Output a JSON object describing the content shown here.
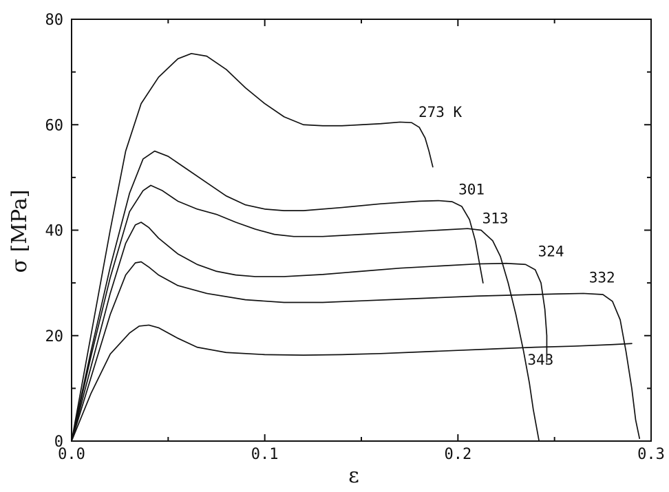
{
  "chart_data": {
    "type": "line",
    "xlabel": "ε",
    "ylabel": "σ [MPa]",
    "xlim": [
      0,
      0.3
    ],
    "ylim": [
      0,
      80
    ],
    "xticks": [
      "0.0",
      "0.1",
      "0.2",
      "0.3"
    ],
    "yticks": [
      "0",
      "20",
      "40",
      "60",
      "80"
    ],
    "grid": false,
    "series": [
      {
        "name": "273 K",
        "points": [
          [
            0.0,
            0.0
          ],
          [
            0.01,
            20.0
          ],
          [
            0.02,
            40.0
          ],
          [
            0.028,
            55.0
          ],
          [
            0.036,
            64.0
          ],
          [
            0.045,
            69.0
          ],
          [
            0.055,
            72.5
          ],
          [
            0.062,
            73.5
          ],
          [
            0.07,
            73.0
          ],
          [
            0.08,
            70.5
          ],
          [
            0.09,
            67.0
          ],
          [
            0.1,
            64.0
          ],
          [
            0.11,
            61.5
          ],
          [
            0.12,
            60.0
          ],
          [
            0.13,
            59.8
          ],
          [
            0.14,
            59.8
          ],
          [
            0.15,
            60.0
          ],
          [
            0.16,
            60.2
          ],
          [
            0.17,
            60.5
          ],
          [
            0.176,
            60.4
          ],
          [
            0.18,
            59.5
          ],
          [
            0.183,
            57.5
          ],
          [
            0.185,
            55.0
          ],
          [
            0.187,
            52.0
          ]
        ]
      },
      {
        "name": "301",
        "points": [
          [
            0.0,
            0.0
          ],
          [
            0.01,
            17.0
          ],
          [
            0.02,
            33.0
          ],
          [
            0.03,
            47.0
          ],
          [
            0.037,
            53.5
          ],
          [
            0.043,
            55.0
          ],
          [
            0.05,
            54.0
          ],
          [
            0.06,
            51.5
          ],
          [
            0.07,
            49.0
          ],
          [
            0.08,
            46.5
          ],
          [
            0.09,
            44.8
          ],
          [
            0.1,
            44.0
          ],
          [
            0.11,
            43.7
          ],
          [
            0.12,
            43.7
          ],
          [
            0.14,
            44.3
          ],
          [
            0.16,
            45.0
          ],
          [
            0.18,
            45.5
          ],
          [
            0.19,
            45.6
          ],
          [
            0.197,
            45.4
          ],
          [
            0.202,
            44.5
          ],
          [
            0.206,
            42.0
          ],
          [
            0.209,
            38.0
          ],
          [
            0.211,
            34.0
          ],
          [
            0.213,
            30.0
          ]
        ]
      },
      {
        "name": "313",
        "points": [
          [
            0.0,
            0.0
          ],
          [
            0.01,
            16.0
          ],
          [
            0.02,
            31.0
          ],
          [
            0.03,
            43.5
          ],
          [
            0.037,
            47.5
          ],
          [
            0.041,
            48.5
          ],
          [
            0.047,
            47.5
          ],
          [
            0.055,
            45.5
          ],
          [
            0.065,
            44.0
          ],
          [
            0.075,
            43.0
          ],
          [
            0.085,
            41.5
          ],
          [
            0.095,
            40.2
          ],
          [
            0.105,
            39.2
          ],
          [
            0.115,
            38.8
          ],
          [
            0.13,
            38.8
          ],
          [
            0.15,
            39.2
          ],
          [
            0.17,
            39.6
          ],
          [
            0.19,
            40.0
          ],
          [
            0.205,
            40.3
          ],
          [
            0.212,
            40.0
          ],
          [
            0.218,
            38.0
          ],
          [
            0.222,
            35.0
          ],
          [
            0.226,
            30.0
          ],
          [
            0.23,
            24.0
          ],
          [
            0.234,
            17.0
          ],
          [
            0.237,
            11.0
          ],
          [
            0.239,
            6.0
          ],
          [
            0.241,
            2.0
          ],
          [
            0.242,
            0.0
          ]
        ]
      },
      {
        "name": "324",
        "points": [
          [
            0.0,
            0.0
          ],
          [
            0.01,
            14.0
          ],
          [
            0.02,
            28.0
          ],
          [
            0.028,
            37.5
          ],
          [
            0.033,
            41.0
          ],
          [
            0.036,
            41.5
          ],
          [
            0.04,
            40.5
          ],
          [
            0.045,
            38.5
          ],
          [
            0.055,
            35.5
          ],
          [
            0.065,
            33.5
          ],
          [
            0.075,
            32.2
          ],
          [
            0.085,
            31.5
          ],
          [
            0.095,
            31.2
          ],
          [
            0.11,
            31.2
          ],
          [
            0.13,
            31.6
          ],
          [
            0.15,
            32.2
          ],
          [
            0.17,
            32.8
          ],
          [
            0.19,
            33.2
          ],
          [
            0.21,
            33.6
          ],
          [
            0.225,
            33.7
          ],
          [
            0.235,
            33.5
          ],
          [
            0.24,
            32.5
          ],
          [
            0.243,
            30.0
          ],
          [
            0.245,
            25.0
          ],
          [
            0.246,
            20.0
          ],
          [
            0.246,
            15.0
          ]
        ]
      },
      {
        "name": "332",
        "points": [
          [
            0.0,
            0.0
          ],
          [
            0.01,
            12.0
          ],
          [
            0.02,
            24.0
          ],
          [
            0.028,
            31.5
          ],
          [
            0.033,
            33.8
          ],
          [
            0.036,
            34.0
          ],
          [
            0.04,
            33.0
          ],
          [
            0.045,
            31.5
          ],
          [
            0.055,
            29.5
          ],
          [
            0.07,
            28.0
          ],
          [
            0.09,
            26.8
          ],
          [
            0.11,
            26.3
          ],
          [
            0.13,
            26.3
          ],
          [
            0.15,
            26.6
          ],
          [
            0.17,
            26.9
          ],
          [
            0.19,
            27.2
          ],
          [
            0.21,
            27.5
          ],
          [
            0.23,
            27.7
          ],
          [
            0.25,
            27.9
          ],
          [
            0.265,
            28.0
          ],
          [
            0.275,
            27.8
          ],
          [
            0.28,
            26.5
          ],
          [
            0.284,
            23.0
          ],
          [
            0.287,
            17.0
          ],
          [
            0.29,
            10.0
          ],
          [
            0.292,
            4.0
          ],
          [
            0.294,
            0.5
          ]
        ]
      },
      {
        "name": "343",
        "points": [
          [
            0.0,
            0.0
          ],
          [
            0.01,
            9.0
          ],
          [
            0.02,
            16.5
          ],
          [
            0.03,
            20.5
          ],
          [
            0.035,
            21.8
          ],
          [
            0.04,
            22.0
          ],
          [
            0.045,
            21.5
          ],
          [
            0.055,
            19.5
          ],
          [
            0.065,
            17.8
          ],
          [
            0.08,
            16.8
          ],
          [
            0.1,
            16.4
          ],
          [
            0.12,
            16.3
          ],
          [
            0.14,
            16.4
          ],
          [
            0.16,
            16.6
          ],
          [
            0.18,
            16.9
          ],
          [
            0.2,
            17.2
          ],
          [
            0.22,
            17.5
          ],
          [
            0.24,
            17.8
          ],
          [
            0.26,
            18.0
          ],
          [
            0.28,
            18.3
          ],
          [
            0.29,
            18.5
          ]
        ]
      }
    ]
  }
}
